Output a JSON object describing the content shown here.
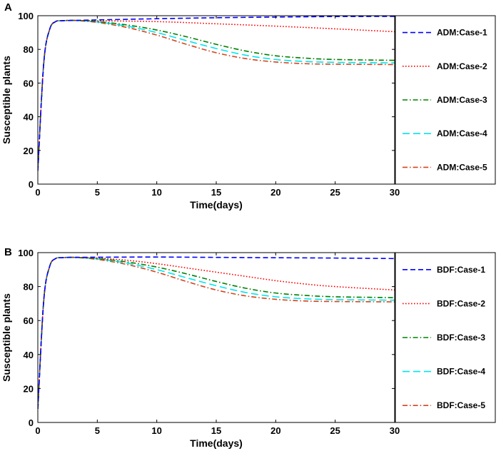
{
  "chart_data": [
    {
      "type": "line",
      "panel": "A",
      "title": "",
      "xlabel": "Time(days)",
      "ylabel": "Susceptible plants",
      "xlim": [
        0,
        30
      ],
      "ylim": [
        0,
        100
      ],
      "xticks": [
        0,
        5,
        10,
        15,
        20,
        25,
        30
      ],
      "yticks": [
        0,
        20,
        40,
        60,
        80,
        100
      ],
      "grid": false,
      "legend_position": "right-outside",
      "series": [
        {
          "name": "ADM:Case-1",
          "color": "#0000ff",
          "dash": "dashed",
          "x": [
            0,
            0.5,
            1,
            1.5,
            2,
            3,
            5,
            10,
            15,
            20,
            25,
            30
          ],
          "y": [
            8,
            72,
            92,
            96.5,
            97,
            97.2,
            97.5,
            98.2,
            98.8,
            99.2,
            99.5,
            99.6
          ]
        },
        {
          "name": "ADM:Case-2",
          "color": "#ff0000",
          "dash": "dotted",
          "x": [
            0,
            0.5,
            1,
            1.5,
            2,
            3,
            5,
            10,
            15,
            20,
            25,
            30
          ],
          "y": [
            8,
            72,
            92,
            96.5,
            97,
            97.2,
            97,
            96.5,
            95.2,
            93.8,
            92.2,
            90.5
          ]
        },
        {
          "name": "ADM:Case-3",
          "color": "#008000",
          "dash": "dashdot",
          "x": [
            0,
            0.5,
            1,
            1.5,
            2,
            3,
            5,
            7.5,
            10,
            12.5,
            15,
            17.5,
            20,
            22.5,
            25,
            30
          ],
          "y": [
            8,
            72,
            92,
            96.5,
            97,
            97.2,
            96.5,
            94.5,
            91.5,
            87.5,
            83,
            79,
            76.2,
            74.8,
            74,
            73.5
          ]
        },
        {
          "name": "ADM:Case-4",
          "color": "#00e5ee",
          "dash": "longdash",
          "x": [
            0,
            0.5,
            1,
            1.5,
            2,
            3,
            5,
            7.5,
            10,
            12.5,
            15,
            17.5,
            20,
            22.5,
            25,
            30
          ],
          "y": [
            8,
            72,
            92,
            96.5,
            97,
            97.2,
            96.3,
            93.8,
            90,
            85.2,
            80.5,
            76.5,
            74,
            72.8,
            72.3,
            72
          ]
        },
        {
          "name": "ADM:Case-5",
          "color": "#d2451e",
          "dash": "dashdot",
          "x": [
            0,
            0.5,
            1,
            1.5,
            2,
            3,
            5,
            7.5,
            10,
            12.5,
            15,
            17.5,
            20,
            22.5,
            25,
            30
          ],
          "y": [
            8,
            72,
            92,
            96.5,
            97,
            97.2,
            96,
            93,
            88.5,
            83,
            78,
            74.5,
            72.5,
            71.5,
            71.2,
            71
          ]
        }
      ]
    },
    {
      "type": "line",
      "panel": "B",
      "title": "",
      "xlabel": "Time(days)",
      "ylabel": "Susceptible plants",
      "xlim": [
        0,
        30
      ],
      "ylim": [
        0,
        100
      ],
      "xticks": [
        0,
        5,
        10,
        15,
        20,
        25,
        30
      ],
      "yticks": [
        0,
        20,
        40,
        60,
        80,
        100
      ],
      "grid": false,
      "legend_position": "right-outside",
      "series": [
        {
          "name": "BDF:Case-1",
          "color": "#0000ff",
          "dash": "dashed",
          "x": [
            0,
            0.5,
            1,
            1.5,
            2,
            3,
            5,
            10,
            15,
            20,
            25,
            30
          ],
          "y": [
            8,
            72,
            92,
            96.5,
            97,
            97.2,
            97.3,
            97.4,
            97.2,
            97,
            96.8,
            96.5
          ]
        },
        {
          "name": "BDF:Case-2",
          "color": "#ff0000",
          "dash": "dotted",
          "x": [
            0,
            0.5,
            1,
            1.5,
            2,
            3,
            5,
            7.5,
            10,
            12.5,
            15,
            17.5,
            20,
            22.5,
            25,
            30
          ],
          "y": [
            8,
            72,
            92,
            96.5,
            97,
            97.2,
            96.8,
            95.5,
            93.5,
            91,
            88.5,
            86,
            83.5,
            81.5,
            80,
            78
          ]
        },
        {
          "name": "BDF:Case-3",
          "color": "#008000",
          "dash": "dashdot",
          "x": [
            0,
            0.5,
            1,
            1.5,
            2,
            3,
            5,
            7.5,
            10,
            12.5,
            15,
            17.5,
            20,
            22.5,
            25,
            30
          ],
          "y": [
            8,
            72,
            92,
            96.5,
            97,
            97.2,
            96.5,
            94.5,
            91.5,
            87.5,
            83,
            79,
            76.2,
            74.8,
            74,
            73.5
          ]
        },
        {
          "name": "BDF:Case-4",
          "color": "#00e5ee",
          "dash": "longdash",
          "x": [
            0,
            0.5,
            1,
            1.5,
            2,
            3,
            5,
            7.5,
            10,
            12.5,
            15,
            17.5,
            20,
            22.5,
            25,
            30
          ],
          "y": [
            8,
            72,
            92,
            96.5,
            97,
            97.2,
            96.3,
            93.8,
            90,
            85.2,
            80.5,
            76.5,
            74,
            72.8,
            72.3,
            72
          ]
        },
        {
          "name": "BDF:Case-5",
          "color": "#d2451e",
          "dash": "dashdot",
          "x": [
            0,
            0.5,
            1,
            1.5,
            2,
            3,
            5,
            7.5,
            10,
            12.5,
            15,
            17.5,
            20,
            22.5,
            25,
            30
          ],
          "y": [
            8,
            72,
            92,
            96.5,
            97,
            97.2,
            96,
            93,
            88.5,
            83,
            78,
            74.5,
            72.5,
            71.5,
            71.2,
            71
          ]
        }
      ]
    }
  ]
}
